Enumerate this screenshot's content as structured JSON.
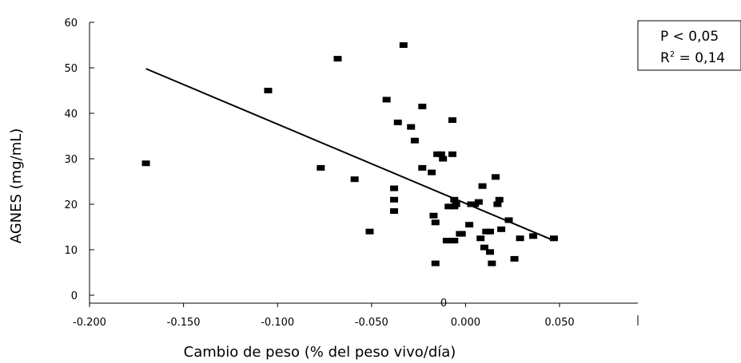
{
  "chart_data": {
    "type": "scatter",
    "xlabel": "Cambio de peso (% del peso vivo/día)",
    "ylabel": "AGNES (mg/mL)",
    "xlim": [
      -0.2,
      0.05
    ],
    "ylim": [
      0,
      60
    ],
    "xticks": [
      -0.2,
      -0.15,
      -0.1,
      -0.05,
      0.0,
      0.05
    ],
    "xtick_labels": [
      "-0.200",
      "-0.150",
      "-0.100",
      "-0.050",
      "0.000",
      "0.050"
    ],
    "yticks": [
      0,
      10,
      20,
      30,
      40,
      50,
      60
    ],
    "ytick_labels": [
      "0",
      "10",
      "20",
      "30",
      "40",
      "50",
      "60"
    ],
    "grid": false,
    "series": [
      {
        "points": [
          [
            -0.17,
            29
          ],
          [
            -0.105,
            45
          ],
          [
            -0.077,
            28
          ],
          [
            -0.068,
            52
          ],
          [
            -0.059,
            25.5
          ],
          [
            -0.051,
            14
          ],
          [
            -0.042,
            43
          ],
          [
            -0.038,
            23.5
          ],
          [
            -0.038,
            21
          ],
          [
            -0.038,
            18.5
          ],
          [
            -0.036,
            38
          ],
          [
            -0.033,
            55
          ],
          [
            -0.029,
            37
          ],
          [
            -0.027,
            34
          ],
          [
            -0.023,
            41.5
          ],
          [
            -0.023,
            28
          ],
          [
            -0.018,
            27
          ],
          [
            -0.017,
            17.5
          ],
          [
            -0.016,
            16
          ],
          [
            -0.016,
            7
          ],
          [
            -0.015,
            31
          ],
          [
            -0.013,
            31
          ],
          [
            -0.012,
            30
          ],
          [
            -0.01,
            12
          ],
          [
            -0.009,
            19.5
          ],
          [
            -0.008,
            12
          ],
          [
            -0.007,
            38.5
          ],
          [
            -0.007,
            31
          ],
          [
            -0.006,
            21
          ],
          [
            -0.006,
            19.5
          ],
          [
            -0.005,
            20
          ],
          [
            -0.006,
            12
          ],
          [
            -0.003,
            13.5
          ],
          [
            -0.002,
            13.5
          ],
          [
            0.002,
            15.5
          ],
          [
            0.003,
            20
          ],
          [
            0.005,
            20
          ],
          [
            0.007,
            20.5
          ],
          [
            0.008,
            12.5
          ],
          [
            0.009,
            24
          ],
          [
            0.01,
            10.5
          ],
          [
            0.011,
            14
          ],
          [
            0.013,
            9.5
          ],
          [
            0.013,
            14
          ],
          [
            0.014,
            7
          ],
          [
            0.016,
            26
          ],
          [
            0.017,
            20
          ],
          [
            0.018,
            21
          ],
          [
            0.019,
            14.5
          ],
          [
            0.023,
            16.5
          ],
          [
            0.026,
            8
          ],
          [
            0.029,
            12.5
          ],
          [
            0.036,
            13
          ],
          [
            0.047,
            12.5
          ]
        ]
      }
    ],
    "trendline": {
      "x": [
        -0.17,
        0.047
      ],
      "y": [
        49.8,
        12.0
      ]
    },
    "stats": {
      "p_label": "P < 0,05",
      "r2_prefix": "R",
      "r2_sup": "2",
      "r2_suffix": " = 0,14"
    },
    "stray_label": "0"
  }
}
